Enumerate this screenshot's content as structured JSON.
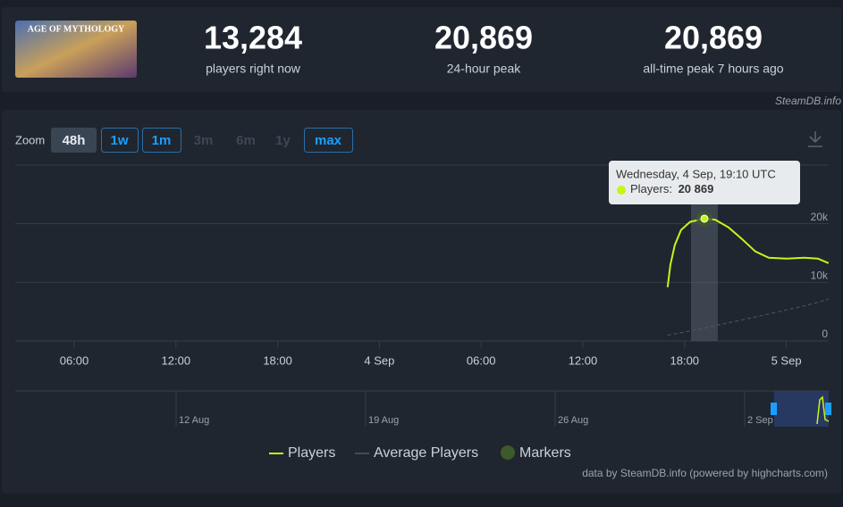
{
  "header": {
    "game_title": "AGE OF MYTHOLOGY",
    "stats": [
      {
        "value": "13,284",
        "label": "players right now"
      },
      {
        "value": "20,869",
        "label": "24-hour peak"
      },
      {
        "value": "20,869",
        "label": "all-time peak 7 hours ago"
      }
    ],
    "source": "SteamDB.info"
  },
  "zoom": {
    "label": "Zoom",
    "buttons": [
      "48h",
      "1w",
      "1m",
      "3m",
      "6m",
      "1y",
      "max"
    ],
    "selected": "48h",
    "disabled": [
      "3m",
      "6m",
      "1y"
    ]
  },
  "chart_data": {
    "type": "line",
    "x": [
      41.0,
      41.16,
      41.42,
      41.79,
      42.32,
      43.17,
      43.8,
      44.59,
      45.38,
      46.17,
      46.96,
      48.01,
      49.07,
      49.86,
      50.49
    ],
    "series": [
      {
        "name": "Players",
        "color": "#c6f51a",
        "values": [
          9160,
          12980,
          16340,
          18935,
          20310,
          20869,
          20700,
          19390,
          17410,
          15270,
          14200,
          14050,
          14200,
          14050,
          13284
        ]
      },
      {
        "name": "Average Players",
        "color": "#4d5866",
        "dashed": true,
        "values": [
          1000,
          1070,
          1200,
          1400,
          1700,
          2200,
          2600,
          3100,
          3600,
          4100,
          4600,
          5300,
          6000,
          6600,
          7180
        ]
      }
    ],
    "xlim": [
      2.52,
      50.5
    ],
    "xticks": [
      {
        "value": 6,
        "label": "06:00"
      },
      {
        "value": 12,
        "label": "12:00"
      },
      {
        "value": 18,
        "label": "18:00"
      },
      {
        "value": 24,
        "label": "4 Sep"
      },
      {
        "value": 30,
        "label": "06:00"
      },
      {
        "value": 36,
        "label": "12:00"
      },
      {
        "value": 42,
        "label": "18:00"
      },
      {
        "value": 48,
        "label": "5 Sep"
      }
    ],
    "ylim": [
      0,
      30000
    ],
    "yticks": [
      0,
      {
        "value": 10000,
        "label": "10k"
      },
      {
        "value": 20000,
        "label": "20k"
      }
    ],
    "grid": true,
    "markers_label": "Markers",
    "tooltip": {
      "index": 5,
      "title": "Wednesday, 4 Sep, 19:10 UTC",
      "label": "Players: ",
      "value": "20 869"
    }
  },
  "navigator": {
    "labels": [
      "12 Aug",
      "19 Aug",
      "26 Aug",
      "2 Sep"
    ]
  },
  "credits": "data by SteamDB.info (powered by highcharts.com)"
}
